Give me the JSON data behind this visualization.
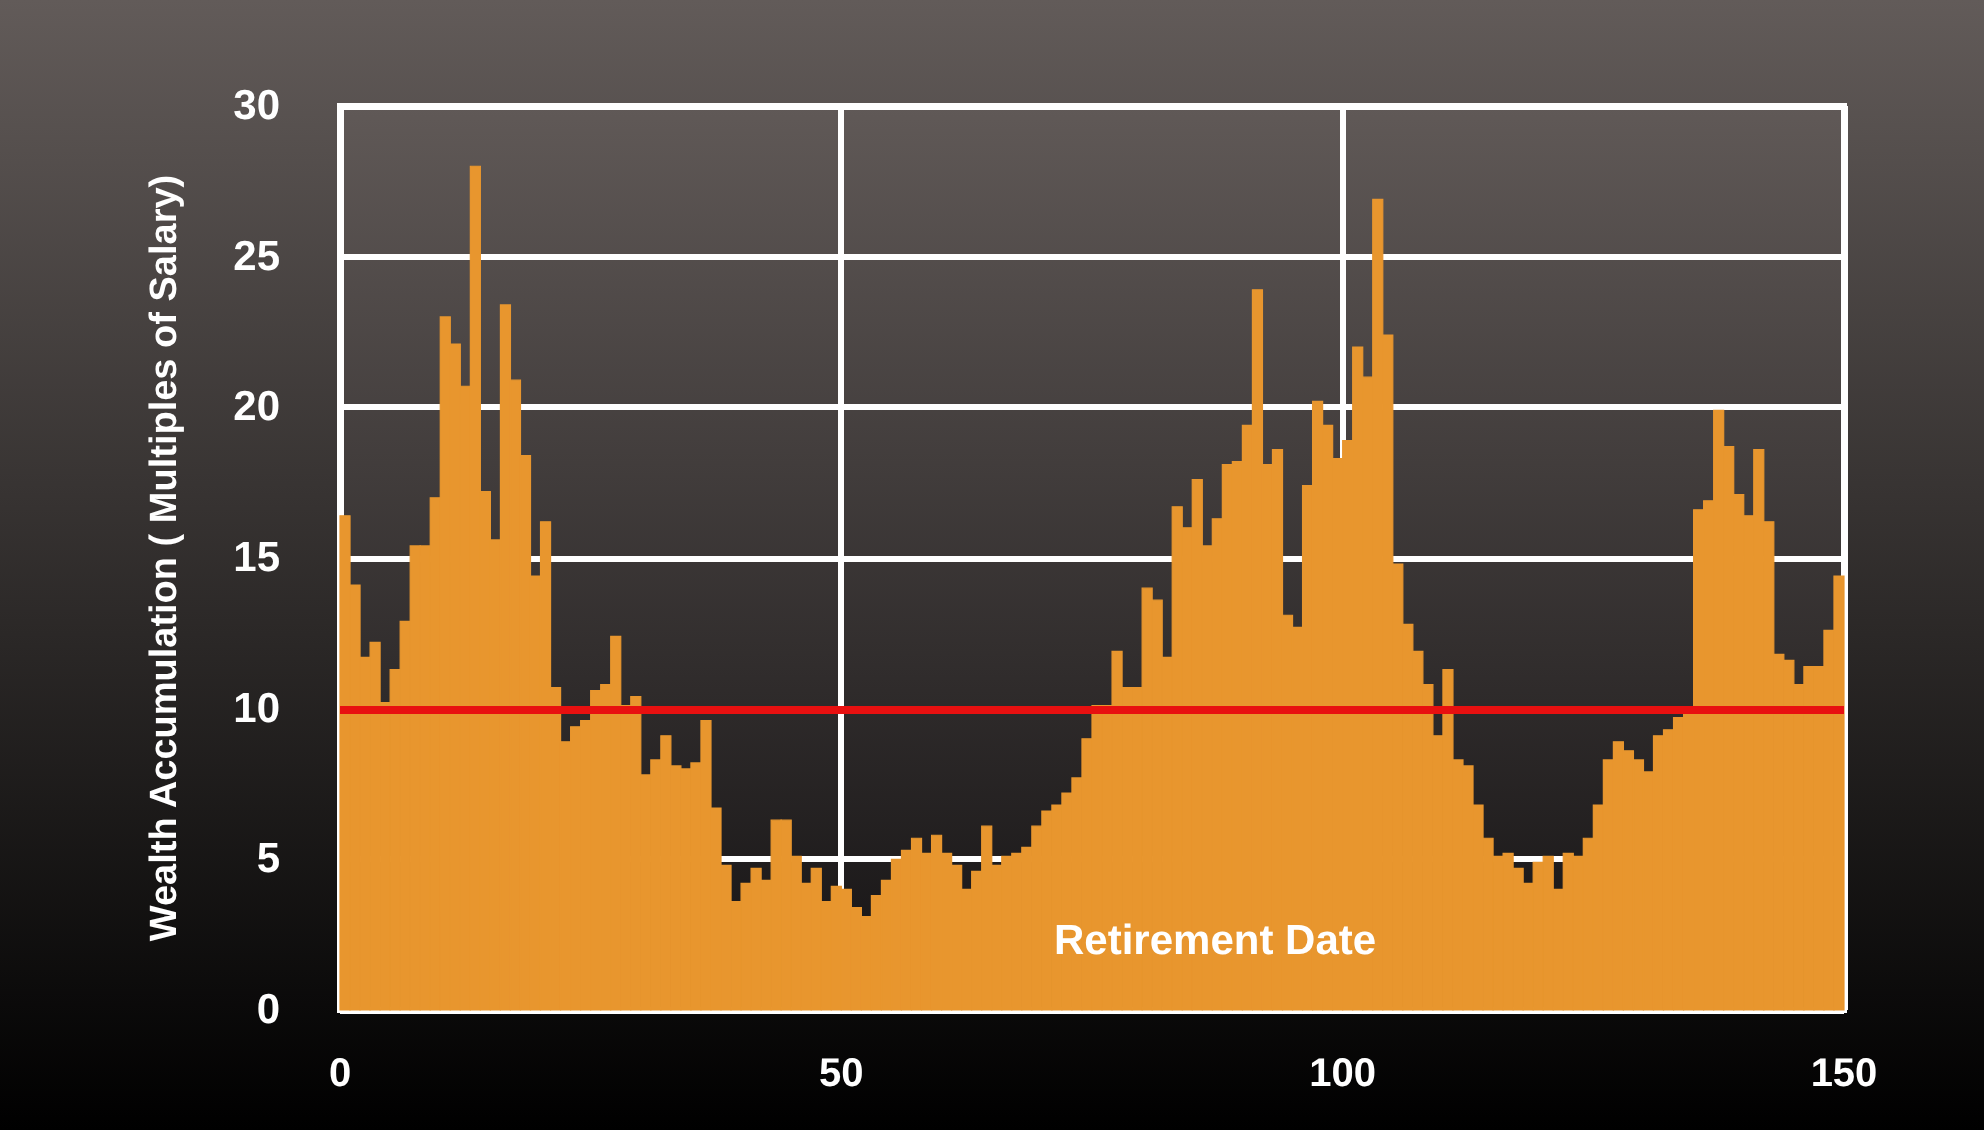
{
  "chart_data": {
    "type": "histogram",
    "ylabel": "Wealth Accumulation ( Multiples of Salary)",
    "annotations": [
      "Retirement Date"
    ],
    "bins": [
      0,
      1,
      2,
      3,
      4,
      5,
      6,
      7,
      8,
      9,
      10,
      11,
      12,
      13,
      14,
      15,
      16,
      17,
      18,
      19,
      20,
      21,
      22,
      23,
      24,
      25,
      26,
      27,
      28,
      29,
      30,
      31,
      32,
      33,
      34,
      35,
      36,
      37,
      38,
      39,
      40,
      41,
      42,
      43,
      44,
      45,
      46,
      47,
      48,
      49,
      50,
      51,
      52,
      53,
      54,
      55,
      56,
      57,
      58,
      59,
      60,
      61,
      62,
      63,
      64,
      65,
      66,
      67,
      68,
      69,
      70,
      71,
      72,
      73,
      74,
      75,
      76,
      77,
      78,
      79,
      80,
      81,
      82,
      83,
      84,
      85,
      86,
      87,
      88,
      89,
      90,
      91,
      92,
      93,
      94,
      95,
      96,
      97,
      98,
      99,
      100,
      101,
      102,
      103,
      104,
      105,
      106,
      107,
      108,
      109,
      110,
      111,
      112,
      113,
      114,
      115,
      116,
      117,
      118,
      119,
      120,
      121,
      122,
      123,
      124,
      125,
      126,
      127,
      128,
      129,
      130,
      131,
      132,
      133,
      134,
      135,
      136,
      137,
      138,
      139,
      140,
      141,
      142,
      143,
      144,
      145,
      146,
      147,
      148,
      149,
      150
    ],
    "values": [
      16.4,
      14.1,
      11.7,
      12.2,
      10.2,
      11.3,
      12.9,
      15.4,
      15.4,
      17.0,
      23.0,
      22.1,
      20.7,
      28.0,
      17.2,
      15.6,
      23.4,
      20.9,
      18.4,
      14.4,
      16.2,
      10.7,
      8.9,
      9.4,
      9.6,
      10.6,
      10.8,
      12.4,
      10.1,
      10.4,
      7.8,
      8.3,
      9.1,
      8.1,
      8.0,
      8.2,
      9.6,
      6.7,
      4.8,
      3.6,
      4.2,
      4.7,
      4.3,
      6.3,
      6.3,
      5.1,
      4.2,
      4.7,
      3.6,
      4.1,
      4.0,
      3.4,
      3.1,
      3.8,
      4.3,
      5.0,
      5.3,
      5.7,
      5.2,
      5.8,
      5.2,
      4.8,
      4.0,
      4.6,
      6.1,
      4.8,
      5.1,
      5.2,
      5.4,
      6.1,
      6.6,
      6.8,
      7.2,
      7.7,
      9.0,
      10.1,
      10.1,
      11.9,
      10.7,
      10.7,
      14.0,
      13.6,
      11.7,
      16.7,
      16.0,
      17.6,
      15.4,
      16.3,
      18.1,
      18.2,
      19.4,
      23.9,
      18.1,
      18.6,
      13.1,
      12.7,
      17.4,
      20.2,
      19.4,
      18.3,
      18.9,
      22.0,
      21.0,
      26.9,
      22.4,
      14.8,
      12.8,
      11.9,
      10.8,
      9.1,
      11.3,
      8.3,
      8.1,
      6.8,
      5.7,
      5.1,
      5.2,
      4.7,
      4.2,
      4.9,
      5.1,
      4.0,
      5.2,
      5.1,
      5.7,
      6.8,
      8.3,
      8.9,
      8.6,
      8.3,
      7.9,
      9.1,
      9.3,
      9.7,
      10.0,
      16.6,
      16.9,
      19.9,
      18.7,
      17.1,
      16.4,
      18.6,
      16.2,
      11.8,
      11.6,
      10.8,
      11.4,
      11.4,
      12.6,
      14.4
    ],
    "color": "#e8962e",
    "xlim": [
      0,
      150
    ],
    "xticks": [
      0,
      50,
      100,
      150
    ],
    "ylim": [
      0,
      30
    ],
    "yticks": [
      0,
      5,
      10,
      15,
      20,
      25,
      30
    ],
    "grid": true,
    "ref_lines": [
      {
        "axis": "y",
        "value": 10,
        "color": "#e81010"
      }
    ]
  }
}
